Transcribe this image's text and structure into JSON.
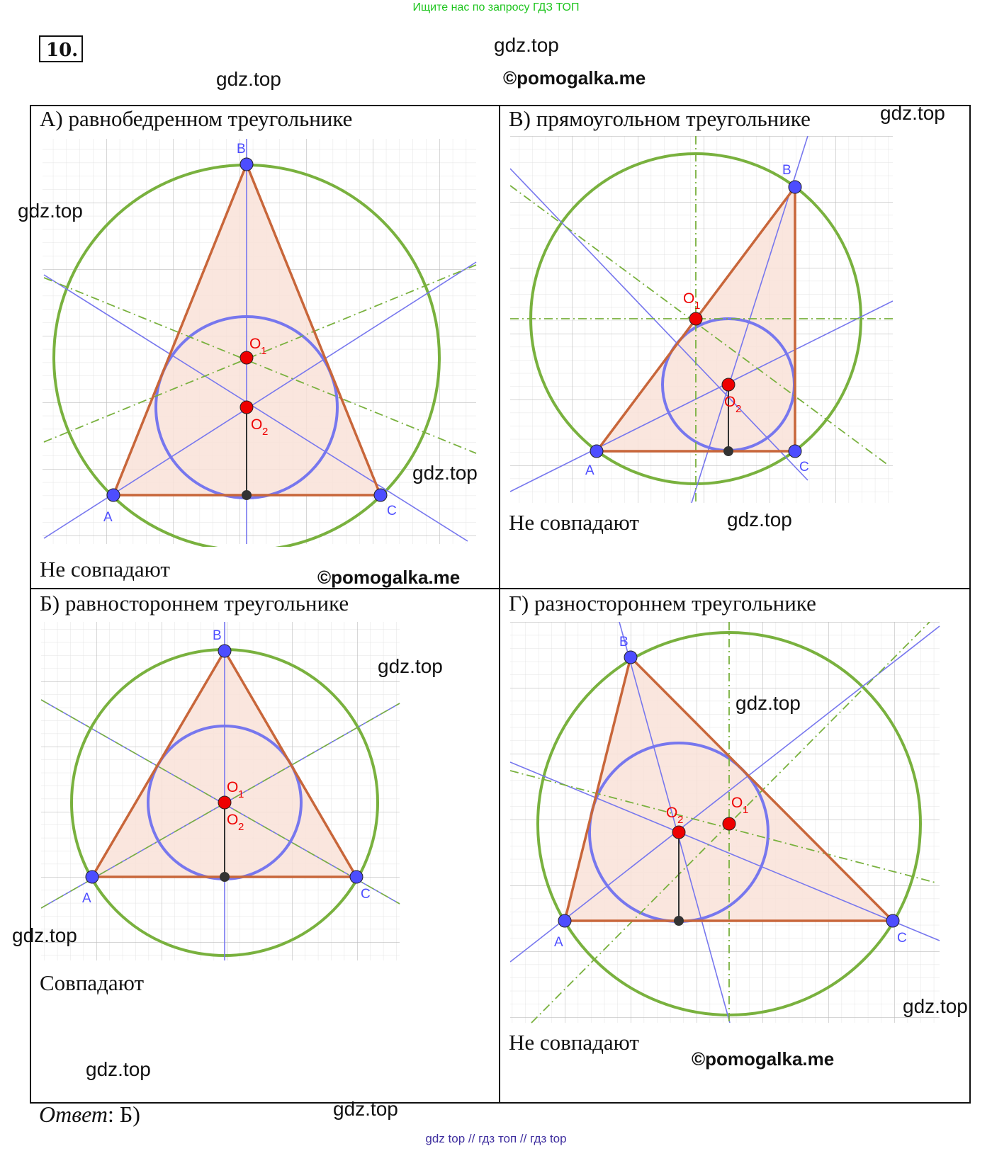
{
  "header": {
    "search_note": "Ищите нас по запросу ГДЗ ТОП",
    "task_number": "10."
  },
  "watermarks": {
    "gdz": "gdz.top",
    "pomogalka": "©pomogalka.me"
  },
  "panels": {
    "a": {
      "title": "А) равнобедренном треугольнике",
      "result": "Не совпадают"
    },
    "b": {
      "title": "В) прямоугольном треугольнике",
      "result": "Не совпадают"
    },
    "c": {
      "title": "Б) равностороннем треугольнике",
      "result": "Совпадают"
    },
    "d": {
      "title": "Г) разностороннем треугольнике",
      "result": "Не совпадают"
    }
  },
  "labels": {
    "A": "A",
    "B": "B",
    "C": "C",
    "O1": "O",
    "O2": "O",
    "sub1": "1",
    "sub2": "2"
  },
  "answer": {
    "word": "Ответ",
    "value": ": Б)"
  },
  "footer": {
    "note": "gdz top  //  гдз топ  //  гдз top"
  },
  "colors": {
    "circumcircle": "#79b13e",
    "incircle": "#7777ee",
    "triangle_edge": "#c8663a",
    "triangle_fill": "#f9e2d8",
    "bisector": "#7777ee",
    "perp_bisector": "#79b13e",
    "vertex": "#4d4dff",
    "center": "#ee0000",
    "grid": "#cfcfcf",
    "top_note": "#1ec51e",
    "bottom_note": "#3f2f9f"
  }
}
